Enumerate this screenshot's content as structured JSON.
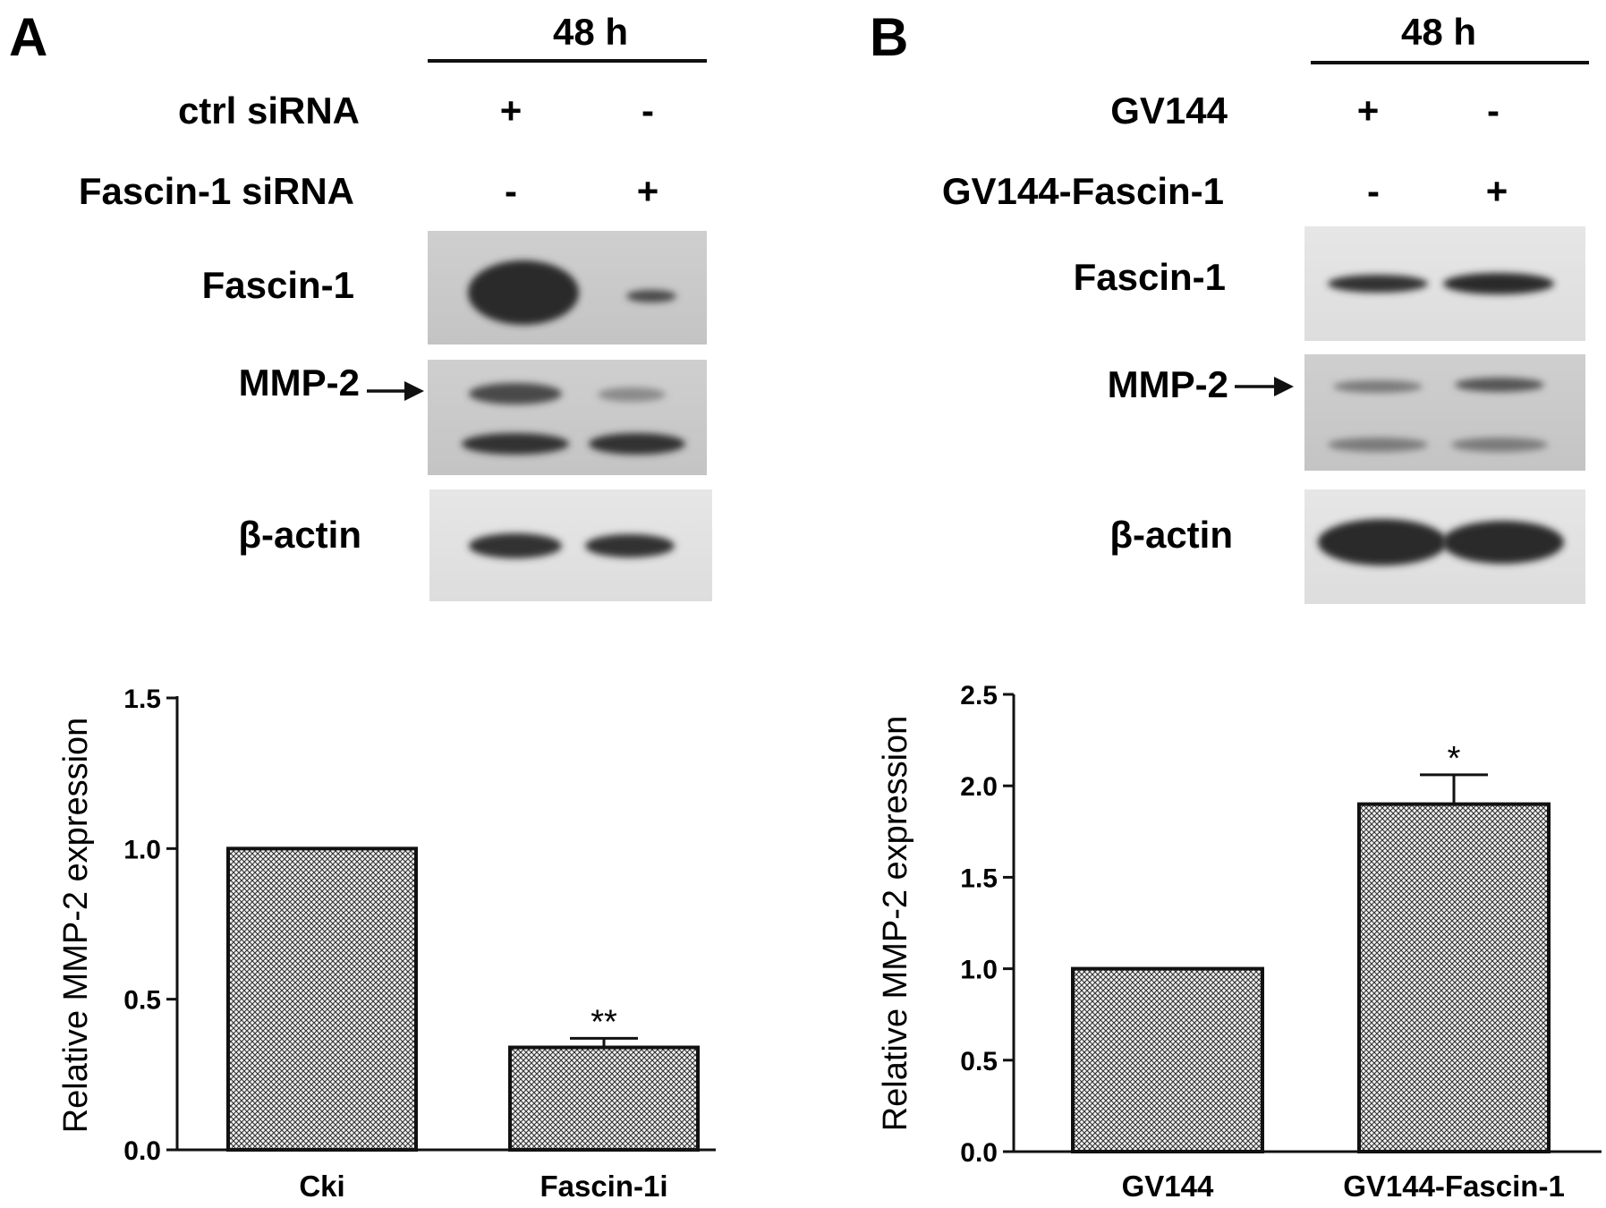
{
  "panels": [
    {
      "letter": "A",
      "time": "48 h",
      "treatments": [
        {
          "label": "ctrl siRNA",
          "lane1": "+",
          "lane2": "-"
        },
        {
          "label": "Fascin-1 siRNA",
          "lane1": "-",
          "lane2": "+"
        }
      ],
      "blots": [
        {
          "label": "Fascin-1",
          "arrow": false
        },
        {
          "label": "MMP-2",
          "arrow": true
        },
        {
          "label": "β-actin",
          "arrow": false
        }
      ]
    },
    {
      "letter": "B",
      "time": "48 h",
      "treatments": [
        {
          "label": "GV144",
          "lane1": "+",
          "lane2": "-"
        },
        {
          "label": "GV144-Fascin-1",
          "lane1": "-",
          "lane2": "+"
        }
      ],
      "blots": [
        {
          "label": "Fascin-1",
          "arrow": false
        },
        {
          "label": "MMP-2",
          "arrow": true
        },
        {
          "label": "β-actin",
          "arrow": false
        }
      ]
    }
  ],
  "chart_data": [
    {
      "type": "bar",
      "categories": [
        "Cki",
        "Fascin-1i"
      ],
      "values": [
        1.0,
        0.34
      ],
      "errors": [
        0,
        0.03
      ],
      "significance": [
        "",
        "**"
      ],
      "ylabel": "Relative MMP-2 expression",
      "ylim": [
        0,
        1.5
      ],
      "yticks": [
        "0.0",
        "0.5",
        "1.0",
        "1.5"
      ],
      "grid": false,
      "fill": "crosshatch"
    },
    {
      "type": "bar",
      "categories": [
        "GV144",
        "GV144-Fascin-1"
      ],
      "values": [
        1.0,
        1.9
      ],
      "errors": [
        0,
        0.16
      ],
      "significance": [
        "",
        "*"
      ],
      "ylabel": "Relative MMP-2 expression",
      "ylim": [
        0,
        2.5
      ],
      "yticks": [
        "0.0",
        "0.5",
        "1.0",
        "1.5",
        "2.0",
        "2.5"
      ],
      "grid": false,
      "fill": "crosshatch"
    }
  ]
}
